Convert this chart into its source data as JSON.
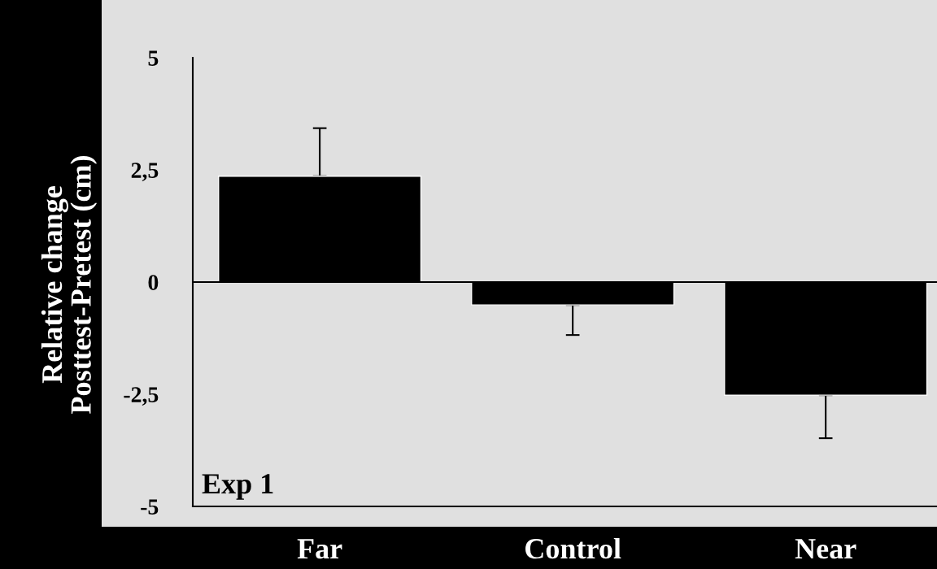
{
  "chart_data": {
    "type": "bar",
    "ylabel": "Relative change\nPosttest-Pretest (cm)",
    "categories": [
      "Far",
      "Control",
      "Near"
    ],
    "values": [
      2.36,
      -0.51,
      -2.52
    ],
    "errors": [
      [
        2.36,
        3.43
      ],
      [
        -1.18,
        -0.51
      ],
      [
        -3.48,
        -2.52
      ]
    ],
    "ref_lines": [
      {
        "axis": "y",
        "value": 0,
        "color": "#000000"
      }
    ],
    "color": "#000000",
    "ylim": [
      -5,
      5
    ],
    "yticks": [
      {
        "value": 5,
        "label": "5"
      },
      {
        "value": 2.5,
        "label": "2,5"
      },
      {
        "value": 0,
        "label": "0"
      },
      {
        "value": -2.5,
        "label": "-2,5"
      },
      {
        "value": -5,
        "label": "-5"
      }
    ],
    "annotations": [
      "Exp 1"
    ],
    "grid": false,
    "legend": false
  }
}
